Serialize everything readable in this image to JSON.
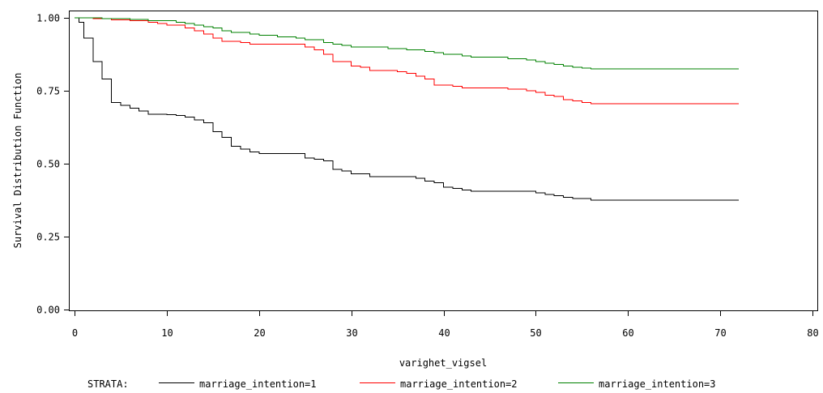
{
  "chart_data": {
    "type": "line",
    "step": true,
    "xlabel": "varighet_vigsel",
    "ylabel": "Survival Distribution Function",
    "xlim": [
      0,
      80
    ],
    "ylim": [
      0,
      1
    ],
    "xticks": [
      "0",
      "10",
      "20",
      "30",
      "40",
      "50",
      "60",
      "70",
      "80"
    ],
    "xtick_values": [
      0,
      10,
      20,
      30,
      40,
      50,
      60,
      70,
      80
    ],
    "yticks": [
      "0.00",
      "0.25",
      "0.50",
      "0.75",
      "1.00"
    ],
    "ytick_values": [
      0,
      0.25,
      0.5,
      0.75,
      1.0
    ],
    "grid": false,
    "legend": {
      "title": "STRATA:",
      "placement": "bottom"
    },
    "series": [
      {
        "name": "marriage_intention=1",
        "color": "#000000",
        "x": [
          0,
          0.5,
          1,
          2,
          3,
          4,
          5,
          6,
          7,
          8,
          10,
          11,
          12,
          13,
          14,
          15,
          16,
          17,
          18,
          19,
          20,
          25,
          26,
          27,
          28,
          29,
          30,
          32,
          37,
          38,
          39,
          40,
          41,
          42,
          43,
          50,
          51,
          52,
          53,
          54,
          56,
          72
        ],
        "y": [
          1.0,
          0.985,
          0.93,
          0.85,
          0.79,
          0.71,
          0.7,
          0.69,
          0.68,
          0.67,
          0.668,
          0.665,
          0.66,
          0.65,
          0.64,
          0.61,
          0.59,
          0.56,
          0.55,
          0.54,
          0.535,
          0.52,
          0.515,
          0.51,
          0.48,
          0.475,
          0.465,
          0.455,
          0.45,
          0.44,
          0.435,
          0.42,
          0.415,
          0.41,
          0.405,
          0.4,
          0.395,
          0.39,
          0.385,
          0.38,
          0.375,
          0.375
        ]
      },
      {
        "name": "marriage_intention=2",
        "color": "#ff0000",
        "x": [
          0,
          2,
          4,
          6,
          8,
          9,
          10,
          12,
          13,
          14,
          15,
          16,
          18,
          19,
          20,
          25,
          26,
          27,
          28,
          30,
          31,
          32,
          35,
          36,
          37,
          38,
          39,
          40,
          41,
          42,
          47,
          49,
          50,
          51,
          52,
          53,
          54,
          55,
          56,
          72
        ],
        "y": [
          1.0,
          0.997,
          0.993,
          0.99,
          0.985,
          0.98,
          0.975,
          0.965,
          0.955,
          0.945,
          0.93,
          0.92,
          0.915,
          0.91,
          0.91,
          0.9,
          0.89,
          0.875,
          0.85,
          0.835,
          0.83,
          0.82,
          0.815,
          0.81,
          0.8,
          0.79,
          0.77,
          0.77,
          0.765,
          0.76,
          0.755,
          0.75,
          0.745,
          0.735,
          0.73,
          0.72,
          0.715,
          0.71,
          0.705,
          0.705
        ]
      },
      {
        "name": "marriage_intention=3",
        "color": "#008000",
        "x": [
          0,
          3,
          6,
          8,
          11,
          12,
          13,
          14,
          15,
          16,
          17,
          19,
          20,
          22,
          24,
          25,
          27,
          28,
          29,
          30,
          34,
          36,
          38,
          39,
          40,
          42,
          43,
          47,
          49,
          50,
          51,
          52,
          53,
          54,
          55,
          56,
          72
        ],
        "y": [
          1.0,
          0.997,
          0.994,
          0.99,
          0.985,
          0.98,
          0.975,
          0.97,
          0.965,
          0.955,
          0.95,
          0.945,
          0.94,
          0.935,
          0.93,
          0.925,
          0.915,
          0.91,
          0.905,
          0.9,
          0.895,
          0.89,
          0.885,
          0.88,
          0.875,
          0.87,
          0.865,
          0.86,
          0.855,
          0.85,
          0.845,
          0.84,
          0.835,
          0.83,
          0.828,
          0.825,
          0.825
        ]
      }
    ]
  }
}
